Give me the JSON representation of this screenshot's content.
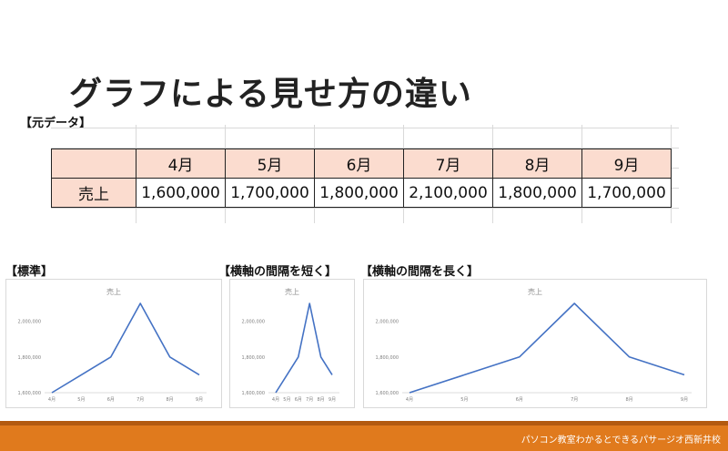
{
  "slide_title": "グラフによる見せ方の違い",
  "source_label": "【元データ】",
  "table": {
    "months": [
      "4月",
      "5月",
      "6月",
      "7月",
      "8月",
      "9月"
    ],
    "row_label": "売上",
    "values": [
      "1,600,000",
      "1,700,000",
      "1,800,000",
      "2,100,000",
      "1,800,000",
      "1,700,000"
    ]
  },
  "chart_labels": {
    "standard": "【標準】",
    "short": "【横軸の間隔を短く】",
    "long": "【横軸の間隔を長く】"
  },
  "chart_data": [
    {
      "type": "line",
      "title": "売上",
      "categories": [
        "4月",
        "5月",
        "6月",
        "7月",
        "8月",
        "9月"
      ],
      "series": [
        {
          "values": [
            1600000,
            1700000,
            1800000,
            2100000,
            1800000,
            1700000
          ]
        }
      ],
      "yticks": [
        "1,600,000",
        "1,800,000",
        "2,000,000"
      ],
      "ylim": [
        1600000,
        2100000
      ],
      "line_color": "#4472c4",
      "grid": false
    },
    {
      "type": "line",
      "title": "売上",
      "categories": [
        "4月",
        "5月",
        "6月",
        "7月",
        "8月",
        "9月"
      ],
      "series": [
        {
          "values": [
            1600000,
            1700000,
            1800000,
            2100000,
            1800000,
            1700000
          ]
        }
      ],
      "yticks": [
        "1,600,000",
        "1,800,000",
        "2,000,000"
      ],
      "ylim": [
        1600000,
        2100000
      ],
      "line_color": "#4472c4",
      "grid": false
    },
    {
      "type": "line",
      "title": "売上",
      "categories": [
        "4月",
        "5月",
        "6月",
        "7月",
        "8月",
        "9月"
      ],
      "series": [
        {
          "values": [
            1600000,
            1700000,
            1800000,
            2100000,
            1800000,
            1700000
          ]
        }
      ],
      "yticks": [
        "1,600,000",
        "1,800,000",
        "2,000,000"
      ],
      "ylim": [
        1600000,
        2100000
      ],
      "line_color": "#4472c4",
      "grid": false
    }
  ],
  "footer": {
    "text": "パソコン教室わかるとできるパサージオ西新井校",
    "accent_color": "#e07a1d"
  }
}
